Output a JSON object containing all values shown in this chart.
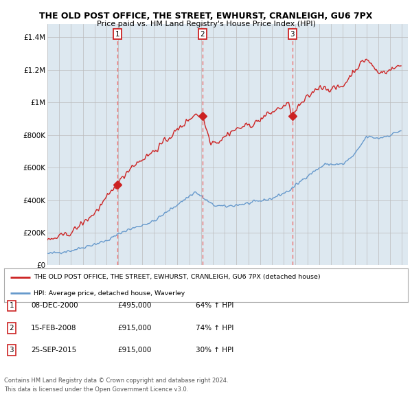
{
  "title_line1": "THE OLD POST OFFICE, THE STREET, EWHURST, CRANLEIGH, GU6 7PX",
  "title_line2": "Price paid vs. HM Land Registry's House Price Index (HPI)",
  "ylabel_ticks": [
    "£0",
    "£200K",
    "£400K",
    "£600K",
    "£800K",
    "£1M",
    "£1.2M",
    "£1.4M"
  ],
  "ytick_values": [
    0,
    200000,
    400000,
    600000,
    800000,
    1000000,
    1200000,
    1400000
  ],
  "ylim": [
    0,
    1480000
  ],
  "sale_year_nums": [
    2000.92,
    2008.12,
    2015.73
  ],
  "sale_prices": [
    495000,
    915000,
    915000
  ],
  "sale_labels": [
    "1",
    "2",
    "3"
  ],
  "legend_line1": "THE OLD POST OFFICE, THE STREET, EWHURST, CRANLEIGH, GU6 7PX (detached house)",
  "legend_line2": "HPI: Average price, detached house, Waverley",
  "table_rows": [
    [
      "1",
      "08-DEC-2000",
      "£495,000",
      "64% ↑ HPI"
    ],
    [
      "2",
      "15-FEB-2008",
      "£915,000",
      "74% ↑ HPI"
    ],
    [
      "3",
      "25-SEP-2015",
      "£915,000",
      "30% ↑ HPI"
    ]
  ],
  "footnote1": "Contains HM Land Registry data © Crown copyright and database right 2024.",
  "footnote2": "This data is licensed under the Open Government Licence v3.0.",
  "red_color": "#cc2222",
  "blue_color": "#6699cc",
  "vline_color": "#ee6666",
  "grid_color": "#bbbbbb",
  "bg_color": "#ffffff",
  "chart_bg": "#dde8f0",
  "label_box_color": "#cc2222"
}
